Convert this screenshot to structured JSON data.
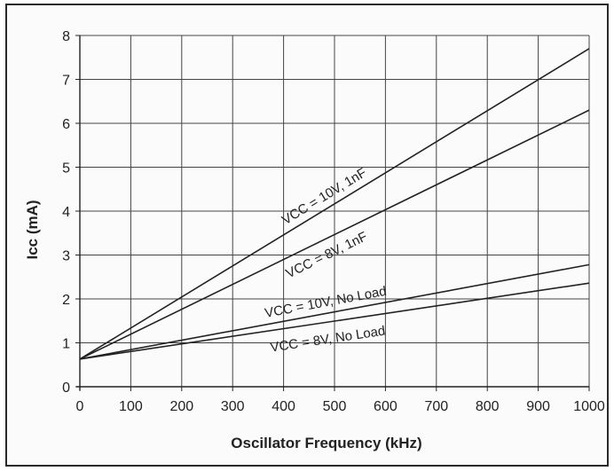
{
  "chart_data": {
    "type": "line",
    "xlabel": "Oscillator  Frequency  (kHz)",
    "ylabel": "Icc (mA)",
    "xlim": [
      0,
      1000
    ],
    "ylim": [
      0,
      8
    ],
    "xticks": [
      0,
      100,
      200,
      300,
      400,
      500,
      600,
      700,
      800,
      900,
      1000
    ],
    "yticks": [
      0,
      1,
      2,
      3,
      4,
      5,
      6,
      7,
      8
    ],
    "grid": true,
    "series": [
      {
        "name": "VCC = 10V, 1nF",
        "x": [
          0,
          1000
        ],
        "y": [
          0.63,
          7.7
        ]
      },
      {
        "name": "VCC = 8V, 1nF",
        "x": [
          0,
          1000
        ],
        "y": [
          0.63,
          6.3
        ]
      },
      {
        "name": "VCC = 10V, No Load",
        "x": [
          0,
          1000
        ],
        "y": [
          0.63,
          2.78
        ]
      },
      {
        "name": "VCC = 8V, No Load",
        "x": [
          0,
          1000
        ],
        "y": [
          0.63,
          2.36
        ]
      }
    ],
    "colors": {
      "line": "#222222",
      "grid": "#444444",
      "background": "#fbfbfb",
      "border": "#2a2a2a"
    }
  }
}
